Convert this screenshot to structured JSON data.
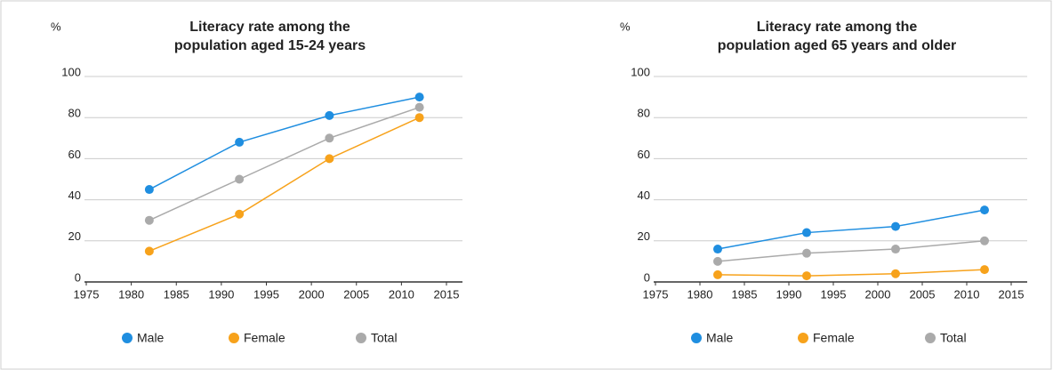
{
  "chart_data": [
    {
      "type": "line",
      "title": [
        "Literacy rate among the",
        "population aged 15-24 years"
      ],
      "y_label": "%",
      "x": [
        1982,
        1992,
        2002,
        2012
      ],
      "xlim": [
        1975,
        2015
      ],
      "xticks": [
        1975,
        1980,
        1985,
        1990,
        1995,
        2000,
        2005,
        2010,
        2015
      ],
      "ylim": [
        0,
        100
      ],
      "yticks": [
        0,
        20,
        40,
        60,
        80,
        100
      ],
      "grid": true,
      "series": [
        {
          "name": "Male",
          "color": "#1f8ee0",
          "values": [
            45,
            68,
            81,
            90
          ]
        },
        {
          "name": "Female",
          "color": "#f7a21b",
          "values": [
            15,
            33,
            60,
            80
          ]
        },
        {
          "name": "Total",
          "color": "#aaaaaa",
          "values": [
            30,
            50,
            70,
            85
          ]
        }
      ]
    },
    {
      "type": "line",
      "title": [
        "Literacy rate among the",
        "population aged 65 years and older"
      ],
      "y_label": "%",
      "x": [
        1982,
        1992,
        2002,
        2012
      ],
      "xlim": [
        1975,
        2015
      ],
      "xticks": [
        1975,
        1980,
        1985,
        1990,
        1995,
        2000,
        2005,
        2010,
        2015
      ],
      "ylim": [
        0,
        100
      ],
      "yticks": [
        0,
        20,
        40,
        60,
        80,
        100
      ],
      "grid": true,
      "series": [
        {
          "name": "Male",
          "color": "#1f8ee0",
          "values": [
            16,
            24,
            27,
            35
          ]
        },
        {
          "name": "Female",
          "color": "#f7a21b",
          "values": [
            3.5,
            3,
            4,
            6
          ]
        },
        {
          "name": "Total",
          "color": "#aaaaaa",
          "values": [
            10,
            14,
            16,
            20
          ]
        }
      ]
    }
  ]
}
